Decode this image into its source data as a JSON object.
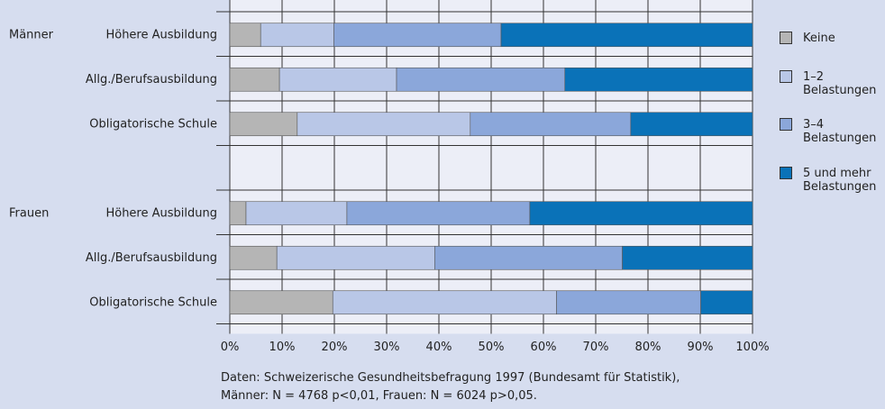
{
  "chart_data": {
    "type": "stacked-barh",
    "categories": [
      "Höhere Ausbildung",
      "Allg./Berufsausbildung",
      "Obligatorische Schule",
      null,
      "Höhere Ausbildung",
      "Allg./Berufsausbildung",
      "Obligatorische Schule"
    ],
    "groups": [
      "Männer",
      null,
      null,
      null,
      "Frauen",
      null,
      null
    ],
    "series": [
      {
        "name": "Keine",
        "color": "#b5b5b5",
        "values": [
          5.9,
          9.5,
          12.9,
          null,
          3.1,
          9.0,
          19.7
        ]
      },
      {
        "name": "1–2 Belastungen",
        "color": "#b9c7e7",
        "values": [
          14.0,
          22.4,
          33.1,
          null,
          19.3,
          30.2,
          42.8
        ]
      },
      {
        "name": "3–4 Belastungen",
        "color": "#8ba7da",
        "values": [
          32.0,
          32.2,
          30.7,
          null,
          35.0,
          35.9,
          27.6
        ]
      },
      {
        "name": "5 und mehr Belastungen",
        "color": "#0a72b8",
        "values": [
          48.1,
          35.9,
          23.3,
          null,
          42.6,
          24.9,
          9.9
        ]
      }
    ],
    "xlim": [
      0,
      100
    ],
    "xticks": [
      {
        "value": 0,
        "label": "0%"
      },
      {
        "value": 10,
        "label": "10%"
      },
      {
        "value": 20,
        "label": "20%"
      },
      {
        "value": 30,
        "label": "30%"
      },
      {
        "value": 40,
        "label": "40%"
      },
      {
        "value": 50,
        "label": "50%"
      },
      {
        "value": 60,
        "label": "60%"
      },
      {
        "value": 70,
        "label": "70%"
      },
      {
        "value": 80,
        "label": "80%"
      },
      {
        "value": 90,
        "label": "90%"
      },
      {
        "value": 100,
        "label": "100%"
      }
    ],
    "grid": true,
    "legend": "right",
    "note": [
      "Daten: Schweizerische Gesundheitsbefragung 1997 (Bundesamt für Statistik),",
      "Männer: N = 4768 p<0,01, Frauen: N = 6024 p>0,05."
    ]
  }
}
